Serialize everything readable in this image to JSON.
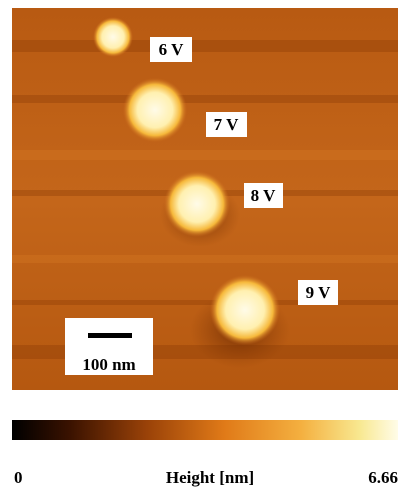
{
  "image": {
    "labels": [
      "6 V",
      "7 V",
      "8 V",
      "9 V"
    ],
    "scale_bar": "100 nm"
  },
  "colorbar": {
    "min": 0,
    "max": 6.66,
    "label": "Height [nm]"
  }
}
